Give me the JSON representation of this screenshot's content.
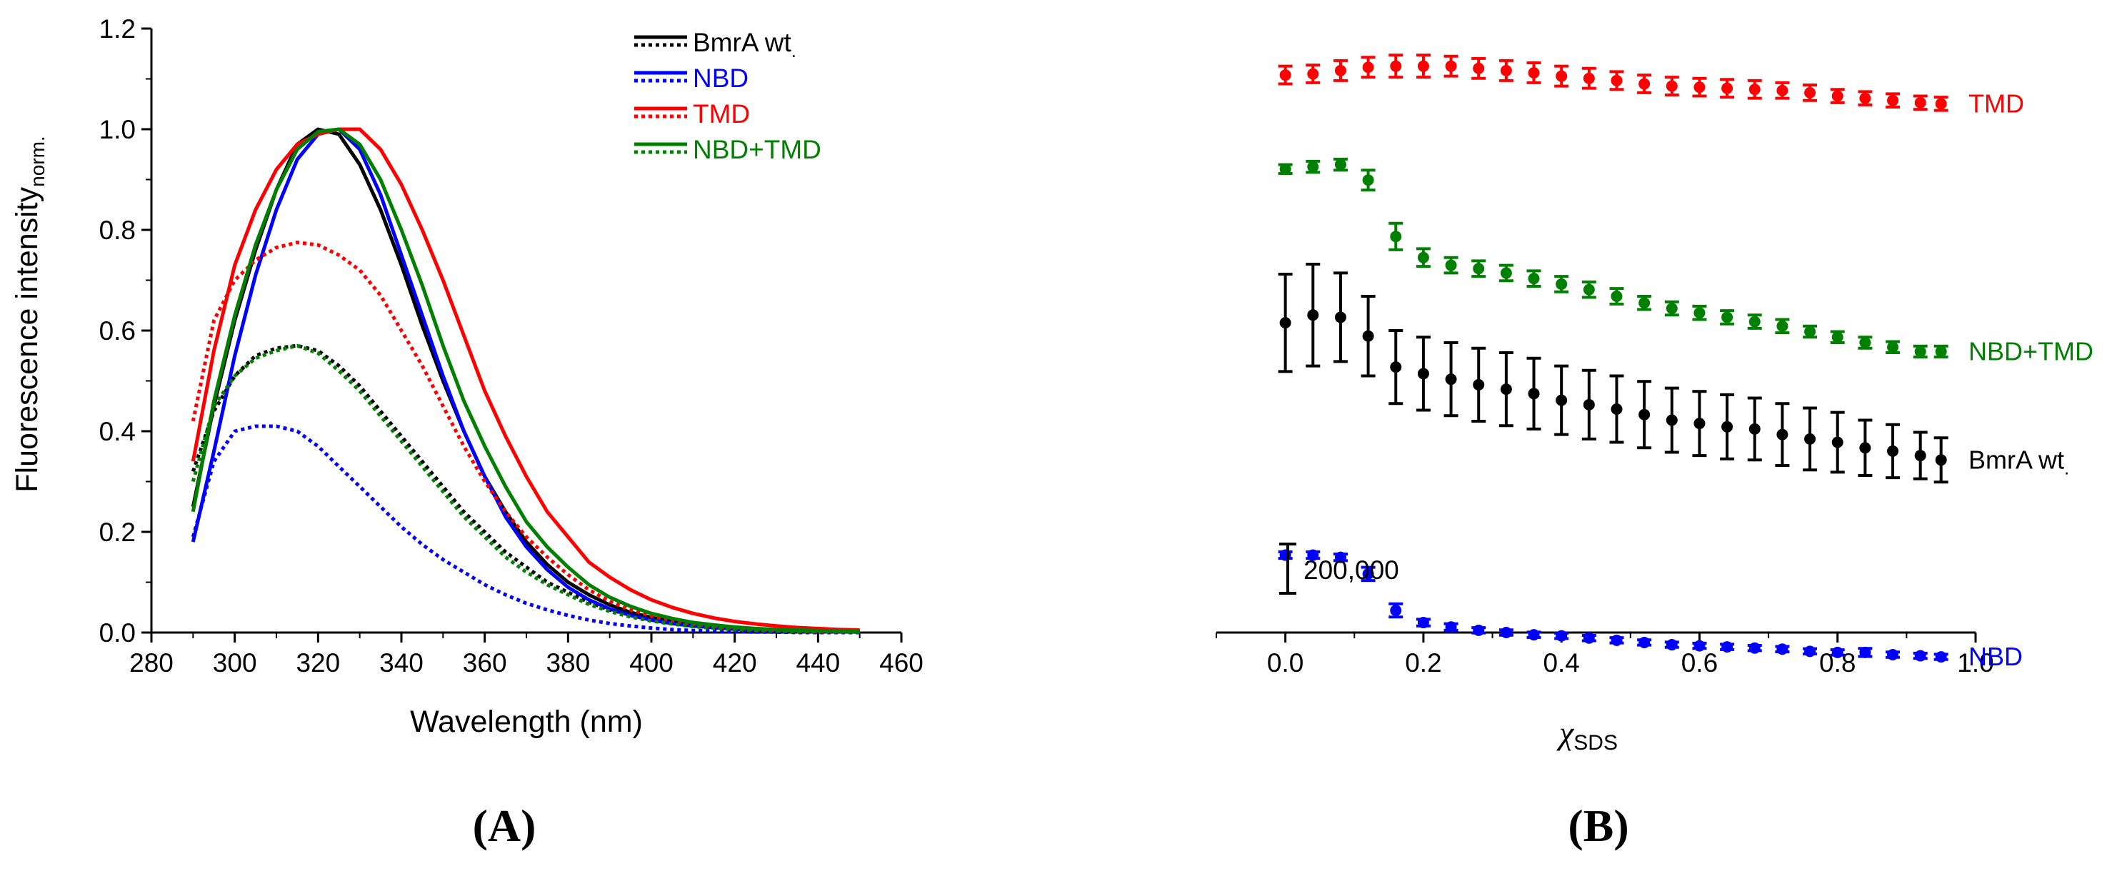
{
  "chart_data": [
    {
      "type": "line",
      "panel": "A",
      "panel_label": "(A)",
      "xlabel": "Wavelength (nm)",
      "ylabel": "Fluorescence intensity",
      "ylabel_sub": "norm.",
      "xlim": [
        280,
        460
      ],
      "ylim": [
        0,
        1.2
      ],
      "xticks": [
        280,
        300,
        320,
        340,
        360,
        380,
        400,
        420,
        440,
        460
      ],
      "yticks": [
        0.0,
        0.2,
        0.4,
        0.6,
        0.8,
        1.0,
        1.2
      ],
      "legend_position": "top-right",
      "legend": [
        {
          "name": "BmrA wt",
          "color": "#000000",
          "sub": "."
        },
        {
          "name": "NBD",
          "color": "#0000ff",
          "sub": ""
        },
        {
          "name": "TMD",
          "color": "#ff0000",
          "sub": ""
        },
        {
          "name": "NBD+TMD",
          "color": "#008000",
          "sub": ""
        }
      ],
      "x": [
        290,
        295,
        300,
        305,
        310,
        315,
        320,
        325,
        330,
        335,
        340,
        345,
        350,
        355,
        360,
        365,
        370,
        375,
        380,
        385,
        390,
        395,
        400,
        405,
        410,
        415,
        420,
        425,
        430,
        435,
        440,
        445,
        450
      ],
      "series": [
        {
          "name": "BmrA wt solid",
          "group": "BmrA wt",
          "style": "solid",
          "color": "#000000",
          "values": [
            0.25,
            0.45,
            0.62,
            0.76,
            0.88,
            0.97,
            1.0,
            0.99,
            0.93,
            0.84,
            0.73,
            0.61,
            0.5,
            0.4,
            0.31,
            0.24,
            0.18,
            0.135,
            0.1,
            0.075,
            0.055,
            0.04,
            0.03,
            0.022,
            0.016,
            0.012,
            0.009,
            0.007,
            0.005,
            0.004,
            0.003,
            0.003,
            0.002
          ]
        },
        {
          "name": "BmrA wt dotted",
          "group": "BmrA wt",
          "style": "dotted",
          "color": "#000000",
          "values": [
            0.32,
            0.44,
            0.51,
            0.55,
            0.565,
            0.57,
            0.56,
            0.53,
            0.49,
            0.44,
            0.39,
            0.34,
            0.29,
            0.24,
            0.2,
            0.16,
            0.13,
            0.1,
            0.08,
            0.06,
            0.045,
            0.035,
            0.025,
            0.018,
            0.013,
            0.01,
            0.007,
            0.005,
            0.004,
            0.003,
            0.002,
            0.002,
            0.001
          ]
        },
        {
          "name": "NBD solid",
          "group": "NBD",
          "style": "solid",
          "color": "#0000ff",
          "values": [
            0.18,
            0.36,
            0.55,
            0.71,
            0.84,
            0.94,
            0.99,
            1.0,
            0.96,
            0.87,
            0.75,
            0.63,
            0.51,
            0.4,
            0.31,
            0.23,
            0.17,
            0.125,
            0.09,
            0.065,
            0.047,
            0.034,
            0.025,
            0.018,
            0.013,
            0.01,
            0.007,
            0.005,
            0.004,
            0.003,
            0.002,
            0.002,
            0.001
          ]
        },
        {
          "name": "NBD dotted",
          "group": "NBD",
          "style": "dotted",
          "color": "#0000ff",
          "values": [
            0.19,
            0.34,
            0.4,
            0.41,
            0.41,
            0.4,
            0.37,
            0.33,
            0.29,
            0.25,
            0.21,
            0.175,
            0.145,
            0.12,
            0.095,
            0.075,
            0.058,
            0.045,
            0.034,
            0.025,
            0.018,
            0.013,
            0.009,
            0.006,
            0.004,
            0.003,
            0.002,
            0.001,
            0.001,
            0.0,
            0.0,
            0.0,
            0.0
          ]
        },
        {
          "name": "TMD solid",
          "group": "TMD",
          "style": "solid",
          "color": "#ff0000",
          "values": [
            0.34,
            0.56,
            0.73,
            0.84,
            0.92,
            0.97,
            0.99,
            1.0,
            1.0,
            0.96,
            0.89,
            0.8,
            0.7,
            0.59,
            0.48,
            0.39,
            0.31,
            0.24,
            0.19,
            0.14,
            0.11,
            0.085,
            0.065,
            0.05,
            0.038,
            0.029,
            0.022,
            0.017,
            0.013,
            0.01,
            0.008,
            0.006,
            0.005
          ]
        },
        {
          "name": "TMD dotted",
          "group": "TMD",
          "style": "dotted",
          "color": "#ff0000",
          "values": [
            0.42,
            0.62,
            0.7,
            0.74,
            0.765,
            0.775,
            0.77,
            0.75,
            0.72,
            0.67,
            0.6,
            0.53,
            0.45,
            0.37,
            0.3,
            0.24,
            0.19,
            0.15,
            0.115,
            0.085,
            0.062,
            0.045,
            0.033,
            0.024,
            0.017,
            0.012,
            0.009,
            0.006,
            0.004,
            0.003,
            0.002,
            0.002,
            0.001
          ]
        },
        {
          "name": "NBD+TMD solid",
          "group": "NBD+TMD",
          "style": "solid",
          "color": "#008000",
          "values": [
            0.24,
            0.46,
            0.63,
            0.77,
            0.88,
            0.96,
            0.995,
            1.0,
            0.97,
            0.9,
            0.8,
            0.69,
            0.57,
            0.46,
            0.37,
            0.29,
            0.22,
            0.17,
            0.13,
            0.095,
            0.07,
            0.052,
            0.038,
            0.028,
            0.02,
            0.015,
            0.011,
            0.008,
            0.006,
            0.005,
            0.004,
            0.003,
            0.002
          ]
        },
        {
          "name": "NBD+TMD dotted",
          "group": "NBD+TMD",
          "style": "dotted",
          "color": "#008000",
          "values": [
            0.3,
            0.45,
            0.51,
            0.545,
            0.56,
            0.57,
            0.555,
            0.52,
            0.48,
            0.43,
            0.38,
            0.33,
            0.28,
            0.23,
            0.19,
            0.15,
            0.12,
            0.095,
            0.075,
            0.056,
            0.042,
            0.031,
            0.023,
            0.017,
            0.012,
            0.009,
            0.006,
            0.004,
            0.003,
            0.002,
            0.002,
            0.001,
            0.001
          ]
        }
      ]
    },
    {
      "type": "scatter",
      "panel": "B",
      "panel_label": "(B)",
      "xlabel": "χ",
      "xlabel_sub": "SDS",
      "ylabel": "",
      "xlim": [
        -0.1,
        1.0
      ],
      "xticks": [
        0.0,
        0.2,
        0.4,
        0.6,
        0.8,
        1.0
      ],
      "yunit": "arbitrary intensity (stacked, offset)",
      "ylim": [
        -480000,
        2250000
      ],
      "scale_bar": {
        "value": 200000,
        "label": "200,000"
      },
      "x": [
        0.0,
        0.04,
        0.08,
        0.12,
        0.16,
        0.2,
        0.24,
        0.28,
        0.32,
        0.36,
        0.4,
        0.44,
        0.48,
        0.52,
        0.56,
        0.6,
        0.64,
        0.68,
        0.72,
        0.76,
        0.8,
        0.84,
        0.88,
        0.92,
        0.95
      ],
      "series": [
        {
          "name": "TMD",
          "color": "#ff0000",
          "values": [
            2040000,
            2045000,
            2060000,
            2075000,
            2080000,
            2080000,
            2080000,
            2070000,
            2060000,
            2050000,
            2035000,
            2025000,
            2015000,
            2000000,
            1990000,
            1985000,
            1980000,
            1975000,
            1970000,
            1960000,
            1945000,
            1935000,
            1925000,
            1915000,
            1910000
          ],
          "errors": [
            40000,
            40000,
            45000,
            45000,
            50000,
            50000,
            45000,
            45000,
            45000,
            45000,
            45000,
            45000,
            40000,
            40000,
            40000,
            40000,
            40000,
            40000,
            35000,
            35000,
            30000,
            30000,
            30000,
            30000,
            30000
          ]
        },
        {
          "name": "NBD+TMD",
          "color": "#008000",
          "values": [
            1615000,
            1625000,
            1635000,
            1565000,
            1310000,
            1215000,
            1180000,
            1165000,
            1145000,
            1120000,
            1095000,
            1070000,
            1040000,
            1010000,
            985000,
            965000,
            945000,
            925000,
            905000,
            880000,
            855000,
            830000,
            810000,
            790000,
            790000
          ],
          "errors": [
            20000,
            25000,
            25000,
            45000,
            60000,
            40000,
            35000,
            35000,
            35000,
            35000,
            35000,
            35000,
            35000,
            30000,
            30000,
            30000,
            30000,
            30000,
            30000,
            25000,
            25000,
            25000,
            25000,
            25000,
            25000
          ]
        },
        {
          "name": "BmrA wt",
          "color": "#000000",
          "sub": ".",
          "values": [
            920000,
            955000,
            945000,
            860000,
            720000,
            690000,
            665000,
            640000,
            620000,
            600000,
            570000,
            550000,
            530000,
            505000,
            480000,
            465000,
            450000,
            440000,
            415000,
            395000,
            380000,
            355000,
            340000,
            320000,
            300000
          ],
          "errors": [
            220000,
            230000,
            200000,
            180000,
            165000,
            165000,
            165000,
            165000,
            165000,
            160000,
            155000,
            155000,
            150000,
            150000,
            145000,
            145000,
            145000,
            140000,
            140000,
            140000,
            135000,
            125000,
            120000,
            105000,
            100000
          ]
        },
        {
          "name": "NBD",
          "color": "#0000ff",
          "values": [
            -130000,
            -130000,
            -140000,
            -215000,
            -380000,
            -435000,
            -455000,
            -470000,
            -480000,
            -490000,
            -495000,
            -505000,
            -515000,
            -525000,
            -535000,
            -540000,
            -545000,
            -550000,
            -555000,
            -565000,
            -570000,
            -570000,
            -580000,
            -585000,
            -590000
          ],
          "errors": [
            15000,
            15000,
            15000,
            30000,
            30000,
            15000,
            15000,
            12000,
            12000,
            12000,
            12000,
            12000,
            12000,
            12000,
            12000,
            12000,
            12000,
            12000,
            12000,
            12000,
            12000,
            18000,
            12000,
            12000,
            12000
          ]
        }
      ]
    }
  ]
}
